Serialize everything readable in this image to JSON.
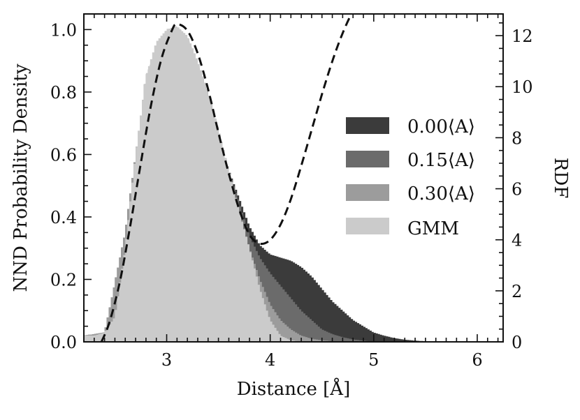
{
  "chart_data": {
    "type": "histogram",
    "xlabel": "Distance [Å]",
    "ylabel": "NND Probability Density",
    "y2label": "RDF",
    "xlim": [
      2.2,
      6.25
    ],
    "ylim": [
      0,
      1.05
    ],
    "y2lim": [
      0,
      12.85
    ],
    "xticks": [
      3,
      4,
      5,
      6
    ],
    "yticks": [
      0.0,
      0.2,
      0.4,
      0.6,
      0.8,
      1.0
    ],
    "y2ticks": [
      0,
      2,
      4,
      6,
      8,
      10,
      12
    ],
    "xtick_labels": [
      "3",
      "4",
      "5",
      "6"
    ],
    "ytick_labels": [
      "0.0",
      "0.2",
      "0.4",
      "0.6",
      "0.8",
      "1.0"
    ],
    "y2tick_labels": [
      "0",
      "2",
      "4",
      "6",
      "8",
      "10",
      "12"
    ],
    "legend": {
      "placement": "center-right",
      "entries": [
        {
          "label": "0.00⟨A⟩",
          "color": "#3b3b3b"
        },
        {
          "label": "0.15⟨A⟩",
          "color": "#6b6b6b"
        },
        {
          "label": "0.30⟨A⟩",
          "color": "#9c9c9c"
        },
        {
          "label": "GMM",
          "color": "#cbcbcb"
        }
      ]
    },
    "series": [
      {
        "name": "0.00⟨A⟩",
        "color": "#3b3b3b",
        "x": [
          2.2,
          2.4,
          2.6,
          2.8,
          3.0,
          3.1,
          3.2,
          3.4,
          3.6,
          3.8,
          3.9,
          4.0,
          4.1,
          4.2,
          4.3,
          4.4,
          4.5,
          4.6,
          4.7,
          4.8,
          4.9,
          5.0,
          5.1,
          5.2,
          5.3,
          5.4,
          5.5,
          5.6
        ],
        "y": [
          0.02,
          0.03,
          0.35,
          0.85,
          1.0,
          1.01,
          0.97,
          0.8,
          0.55,
          0.37,
          0.31,
          0.28,
          0.27,
          0.26,
          0.24,
          0.21,
          0.17,
          0.13,
          0.1,
          0.07,
          0.05,
          0.03,
          0.02,
          0.012,
          0.007,
          0.004,
          0.002,
          0.0
        ]
      },
      {
        "name": "0.15⟨A⟩",
        "color": "#6b6b6b",
        "x": [
          2.2,
          2.4,
          2.6,
          2.8,
          3.0,
          3.1,
          3.2,
          3.4,
          3.6,
          3.8,
          3.9,
          4.0,
          4.1,
          4.2,
          4.3,
          4.4,
          4.5,
          4.6,
          4.7,
          4.8,
          4.9,
          5.0
        ],
        "y": [
          0.02,
          0.03,
          0.35,
          0.85,
          1.0,
          1.01,
          0.97,
          0.8,
          0.55,
          0.34,
          0.27,
          0.22,
          0.18,
          0.14,
          0.1,
          0.07,
          0.04,
          0.025,
          0.015,
          0.008,
          0.004,
          0.0
        ]
      },
      {
        "name": "0.30⟨A⟩",
        "color": "#9c9c9c",
        "x": [
          2.2,
          2.4,
          2.6,
          2.8,
          3.0,
          3.1,
          3.2,
          3.4,
          3.6,
          3.8,
          3.9,
          4.0,
          4.1,
          4.2,
          4.3,
          4.4,
          4.5,
          4.6,
          4.7
        ],
        "y": [
          0.02,
          0.03,
          0.35,
          0.85,
          1.0,
          1.01,
          0.97,
          0.8,
          0.55,
          0.3,
          0.2,
          0.12,
          0.07,
          0.04,
          0.02,
          0.01,
          0.005,
          0.002,
          0.0
        ]
      },
      {
        "name": "GMM",
        "color": "#cbcbcb",
        "x": [
          2.2,
          2.3,
          2.4,
          2.5,
          2.6,
          2.7,
          2.8,
          2.9,
          3.0,
          3.1,
          3.2,
          3.3,
          3.4,
          3.5,
          3.6,
          3.7,
          3.8,
          3.9,
          4.0,
          4.1,
          4.2,
          4.3
        ],
        "y": [
          0.02,
          0.02,
          0.03,
          0.08,
          0.3,
          0.6,
          0.85,
          0.96,
          1.0,
          1.01,
          0.98,
          0.9,
          0.8,
          0.68,
          0.55,
          0.42,
          0.3,
          0.17,
          0.07,
          0.02,
          0.005,
          0.0
        ]
      },
      {
        "name": "RDF",
        "axis": "right",
        "style": "dashed",
        "color": "#111111",
        "x": [
          2.37,
          2.45,
          2.55,
          2.65,
          2.75,
          2.85,
          2.95,
          3.05,
          3.1,
          3.2,
          3.3,
          3.4,
          3.5,
          3.6,
          3.7,
          3.8,
          3.9,
          4.0,
          4.1,
          4.2,
          4.3,
          4.4,
          4.5,
          4.6,
          4.7,
          4.8
        ],
        "y": [
          0.0,
          0.8,
          2.4,
          4.6,
          7.0,
          9.3,
          11.1,
          12.2,
          12.45,
          12.2,
          11.3,
          9.9,
          8.2,
          6.6,
          5.2,
          4.2,
          3.85,
          4.0,
          4.6,
          5.6,
          6.9,
          8.3,
          9.7,
          11.0,
          12.1,
          13.0
        ]
      }
    ]
  }
}
